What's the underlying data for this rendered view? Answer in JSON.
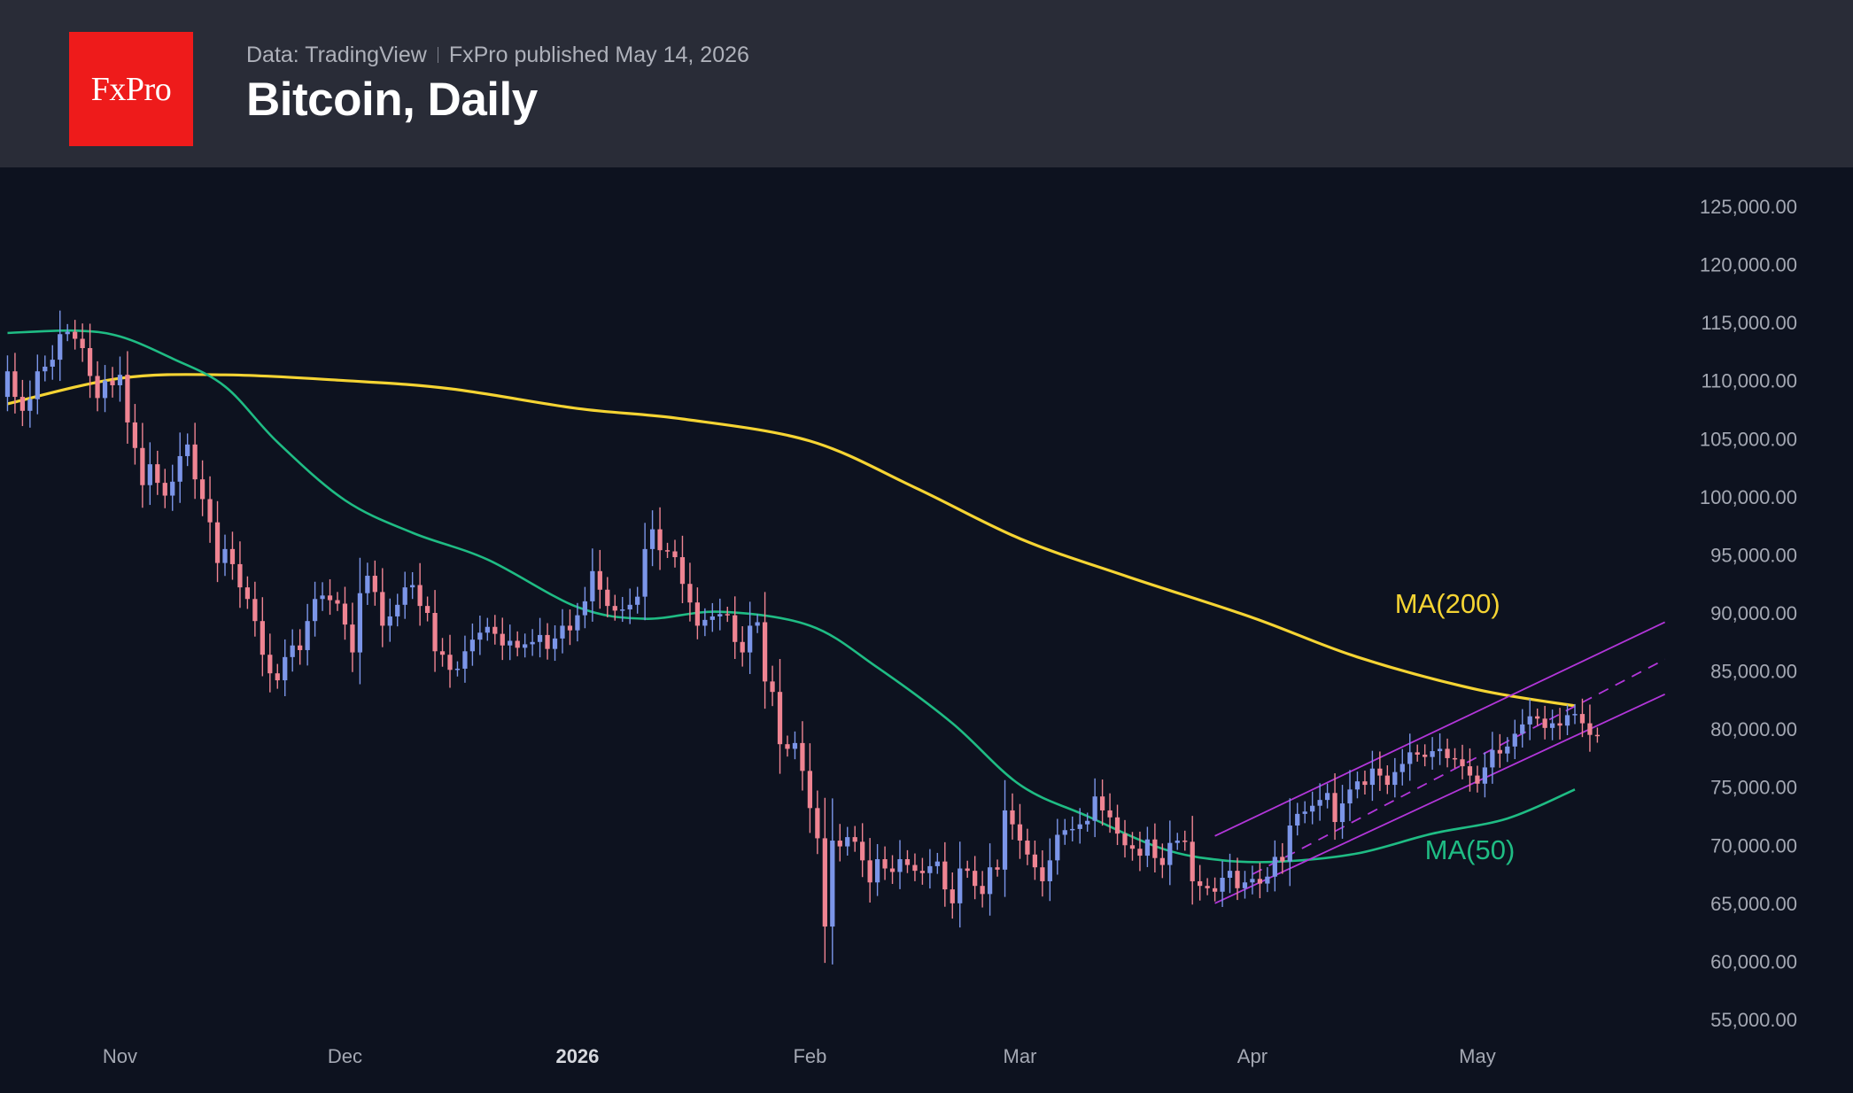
{
  "header": {
    "logo_text": "FxPro",
    "source": "Data: TradingView",
    "published": "FxPro published May 14, 2026",
    "title": "Bitcoin, Daily"
  },
  "colors": {
    "background": "#0d121f",
    "header_bg": "#292c37",
    "logo_bg": "#ee1b1b",
    "candle_up": "#7b95e8",
    "candle_down": "#ef8492",
    "ma200": "#f5d433",
    "ma50": "#1fbc84",
    "channel": "#b236d9"
  },
  "chart_data": {
    "type": "candlestick",
    "title": "Bitcoin, Daily",
    "ylim": [
      55000,
      125000
    ],
    "y_ticks": [
      "125,000.00",
      "120,000.00",
      "115,000.00",
      "110,000.00",
      "105,000.00",
      "100,000.00",
      "95,000.00",
      "90,000.00",
      "85,000.00",
      "80,000.00",
      "75,000.00",
      "70,000.00",
      "65,000.00",
      "60,000.00",
      "55,000.00"
    ],
    "y_tick_values": [
      125000,
      120000,
      115000,
      110000,
      105000,
      100000,
      95000,
      90000,
      85000,
      80000,
      75000,
      70000,
      65000,
      60000,
      55000
    ],
    "x_range": [
      "2025-10-16",
      "2026-05-29"
    ],
    "x_ticks": [
      {
        "label": "Nov",
        "date": "2025-11-01",
        "bold": false
      },
      {
        "label": "Dec",
        "date": "2025-12-01",
        "bold": false
      },
      {
        "label": "2026",
        "date": "2026-01-01",
        "bold": true
      },
      {
        "label": "Feb",
        "date": "2026-02-01",
        "bold": false
      },
      {
        "label": "Mar",
        "date": "2026-03-01",
        "bold": false
      },
      {
        "label": "Apr",
        "date": "2026-04-01",
        "bold": false
      },
      {
        "label": "May",
        "date": "2026-05-01",
        "bold": false
      }
    ],
    "series": [
      {
        "name": "Price",
        "start_date": "2025-10-17",
        "closes": [
          110800,
          108600,
          107400,
          108400,
          110800,
          111200,
          111800,
          114000,
          114200,
          113600,
          112800,
          110400,
          108500,
          110000,
          109600,
          110500,
          106400,
          104200,
          101000,
          102800,
          101200,
          100100,
          101300,
          103500,
          104500,
          101500,
          99800,
          97800,
          94300,
          95500,
          94200,
          92200,
          91200,
          89300,
          86400,
          84800,
          84200,
          86200,
          87200,
          86800,
          89300,
          91200,
          91500,
          91100,
          90800,
          89000,
          86600,
          91700,
          93200,
          91800,
          88900,
          89700,
          90700,
          92200,
          92400,
          90600,
          90000,
          86700,
          86400,
          85100,
          85200,
          86700,
          87700,
          88300,
          88800,
          88200,
          87200,
          87600,
          87000,
          87300,
          87500,
          88100,
          86900,
          87800,
          88900,
          88500,
          89800,
          91000,
          93600,
          92000,
          90600,
          90200,
          90300,
          90700,
          91400,
          95500,
          97200,
          95400,
          95300,
          94800,
          92500,
          90900,
          88900,
          89400,
          89700,
          89900,
          89800,
          87500,
          86600,
          88900,
          89200,
          84100,
          83200,
          78700,
          78300,
          78800,
          76400,
          73200,
          70600,
          63000,
          70400,
          69900,
          70700,
          70300,
          68700,
          66800,
          68800,
          68000,
          67700,
          68800,
          68300,
          67800,
          67600,
          68200,
          68600,
          66200,
          65000,
          68000,
          67800,
          66500,
          65800,
          68100,
          67900,
          73000,
          71800,
          70400,
          69200,
          68100,
          66900,
          68700,
          70900,
          71300,
          71400,
          71800,
          72100,
          74200,
          73000,
          72400,
          71000,
          70000,
          69700,
          69100,
          70500,
          68900,
          68300,
          70200,
          70400,
          70300,
          66900,
          66500,
          66300,
          66000,
          67200,
          67800,
          66300,
          66800,
          67100,
          66700,
          67300,
          69000,
          68600,
          71700,
          72700,
          72900,
          73400,
          73900,
          74500,
          72000,
          73600,
          74800,
          75500,
          75200,
          76600,
          76000,
          75200,
          76300,
          77000,
          78000,
          77800,
          77600,
          78100,
          78300,
          77500,
          77400,
          76800,
          76000,
          75300,
          76700,
          78200,
          77900,
          78500,
          79600,
          80400,
          81100,
          80900,
          80100,
          80500,
          80300,
          81200,
          81300,
          80500,
          79500,
          79400
        ]
      },
      {
        "name": "MA(200)",
        "points": [
          [
            "2025-10-17",
            108000
          ],
          [
            "2025-11-01",
            110200
          ],
          [
            "2025-11-15",
            110500
          ],
          [
            "2025-12-01",
            110000
          ],
          [
            "2025-12-15",
            109300
          ],
          [
            "2026-01-01",
            107600
          ],
          [
            "2026-01-15",
            106700
          ],
          [
            "2026-02-01",
            104800
          ],
          [
            "2026-02-15",
            100800
          ],
          [
            "2026-03-01",
            96400
          ],
          [
            "2026-03-15",
            93200
          ],
          [
            "2026-04-01",
            89600
          ],
          [
            "2026-04-15",
            86200
          ],
          [
            "2026-05-01",
            83400
          ],
          [
            "2026-05-14",
            82000
          ]
        ]
      },
      {
        "name": "MA(50)",
        "points": [
          [
            "2025-10-17",
            114100
          ],
          [
            "2025-10-26",
            114300
          ],
          [
            "2025-11-01",
            113800
          ],
          [
            "2025-11-08",
            111900
          ],
          [
            "2025-11-15",
            109500
          ],
          [
            "2025-11-22",
            104700
          ],
          [
            "2025-12-01",
            99700
          ],
          [
            "2025-12-10",
            96900
          ],
          [
            "2025-12-20",
            94600
          ],
          [
            "2026-01-01",
            90500
          ],
          [
            "2026-01-10",
            89500
          ],
          [
            "2026-01-20",
            90100
          ],
          [
            "2026-02-01",
            88900
          ],
          [
            "2026-02-10",
            85300
          ],
          [
            "2026-02-20",
            80500
          ],
          [
            "2026-03-01",
            75200
          ],
          [
            "2026-03-10",
            72500
          ],
          [
            "2026-03-20",
            69700
          ],
          [
            "2026-03-28",
            68700
          ],
          [
            "2026-04-05",
            68600
          ],
          [
            "2026-04-15",
            69300
          ],
          [
            "2026-04-25",
            71000
          ],
          [
            "2026-05-05",
            72300
          ],
          [
            "2026-05-14",
            74800
          ]
        ]
      }
    ],
    "channel": {
      "upper": [
        [
          "2026-03-27",
          70800
        ],
        [
          "2026-05-26",
          89200
        ]
      ],
      "mid": [
        [
          "2026-04-01",
          67500
        ],
        [
          "2026-05-26",
          86000
        ]
      ],
      "lower": [
        [
          "2026-03-27",
          65000
        ],
        [
          "2026-05-26",
          83000
        ]
      ],
      "mid_solid_until": "2026-04-15"
    },
    "annotations": [
      {
        "text": "MA(200)",
        "date": "2026-04-20",
        "value": 90000
      },
      {
        "text": "MA(50)",
        "date": "2026-04-24",
        "value": 68800
      }
    ]
  }
}
